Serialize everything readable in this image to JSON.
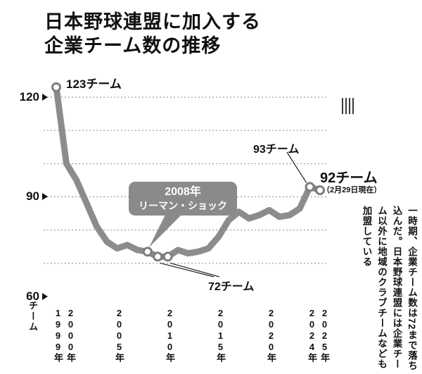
{
  "title": {
    "line1": "日本野球連盟に加入する",
    "line2": "企業チーム数の推移"
  },
  "y_axis": {
    "ticks": [
      {
        "label": "120"
      },
      {
        "label": "90"
      },
      {
        "label": "60"
      }
    ],
    "unit": "チーム"
  },
  "x_axis": {
    "labels": [
      "1999年",
      "2000年",
      "2005年",
      "2010年",
      "2015年",
      "2020年",
      "2024年",
      "2025年"
    ]
  },
  "annotations": {
    "peak_label": "123チーム",
    "prev_label": "93チーム",
    "current_label": "92チーム",
    "current_note": "（2月29日現在）",
    "trough_label": "72チーム",
    "callout_line1": "2008年",
    "callout_line2": "リーマン・ショック"
  },
  "side_note": {
    "text": "一時期、企業チーム数は72まで落ち込んだ。日本野球連盟には企業チーム以外に地域のクラブチームなども加盟している"
  },
  "colors": {
    "line": "#8c8c8c",
    "callout_bg": "#8a8a8a",
    "grid": "#8a8a8a",
    "text": "#111111",
    "marker_fill": "#ffffff",
    "marker_ring": "#7d7d7d"
  },
  "chart_data": {
    "type": "line",
    "title": "日本野球連盟に加入する企業チーム数の推移",
    "xlabel": "年",
    "ylabel": "チーム",
    "x": [
      1999,
      2000,
      2001,
      2002,
      2003,
      2004,
      2005,
      2006,
      2007,
      2008,
      2009,
      2010,
      2011,
      2012,
      2013,
      2014,
      2015,
      2016,
      2017,
      2018,
      2019,
      2020,
      2021,
      2022,
      2023,
      2024,
      2025
    ],
    "values": [
      123,
      100,
      95,
      88,
      81,
      76.5,
      74.5,
      75.5,
      74,
      73.5,
      72,
      72,
      74,
      73,
      73.5,
      74.5,
      78,
      83,
      85.5,
      83.5,
      84.5,
      86,
      84,
      84.5,
      86.5,
      93,
      92
    ],
    "ylim": [
      60,
      130
    ],
    "y_ticks": [
      60,
      90,
      120
    ],
    "gridlines": [
      70,
      80,
      90,
      100,
      110,
      120
    ],
    "grid": "dotted",
    "legend": "none",
    "marker_x": [
      1999,
      2008,
      2009,
      2010,
      2024,
      2025
    ],
    "key_points": {
      "peak": {
        "year": 1999,
        "value": 123
      },
      "lehman_shock": {
        "year": 2008
      },
      "trough": {
        "years": [
          2009,
          2010
        ],
        "value": 72
      },
      "prev": {
        "year": 2024,
        "value": 93
      },
      "current": {
        "year": 2025,
        "value": 92
      }
    }
  }
}
